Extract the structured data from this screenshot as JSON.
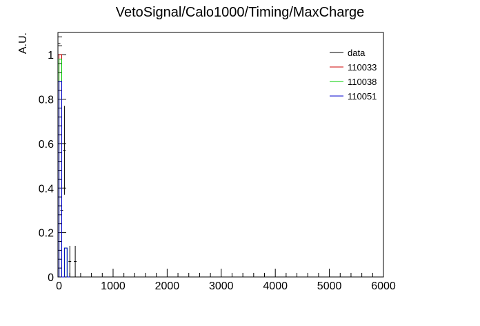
{
  "chart_data": {
    "type": "line",
    "title": "VetoSignal/Calo1000/Timing/MaxCharge",
    "xlabel": "",
    "ylabel": "A.U.",
    "xlim": [
      -20,
      6000
    ],
    "ylim": [
      0,
      1.1
    ],
    "x_ticks": [
      0,
      1000,
      2000,
      3000,
      4000,
      5000,
      6000
    ],
    "y_ticks": [
      0,
      0.2,
      0.4,
      0.6,
      0.8,
      1
    ],
    "x_tick_labels": [
      "0",
      "1000",
      "2000",
      "3000",
      "4000",
      "5000",
      "6000"
    ],
    "y_tick_labels": [
      "0",
      "0.2",
      "0.4",
      "0.6",
      "0.8",
      "1"
    ],
    "bin_width": 50,
    "grid": false,
    "legend_position": "top-right",
    "series": [
      {
        "name": "data",
        "color": "#000000",
        "style": "points-with-errors",
        "points": [
          {
            "x": 0,
            "y": 1.05,
            "err": 0.0
          },
          {
            "x": 50,
            "y": 0.3,
            "err": 0.12
          },
          {
            "x": 100,
            "y": 0.57,
            "err": 0.2
          },
          {
            "x": 200,
            "y": 0.07,
            "err": 0.07
          },
          {
            "x": 300,
            "y": 0.07,
            "err": 0.07
          }
        ]
      },
      {
        "name": "110033",
        "color": "#cc0000",
        "style": "step",
        "edges": [
          0,
          50,
          100
        ],
        "values": [
          1.0,
          0.0
        ]
      },
      {
        "name": "110038",
        "color": "#00cc00",
        "style": "step",
        "edges": [
          0,
          50,
          100,
          150,
          200
        ],
        "values": [
          0.98,
          0.0,
          0.13,
          0.0
        ]
      },
      {
        "name": "110051",
        "color": "#0000cc",
        "style": "step",
        "edges": [
          0,
          50,
          100,
          150,
          200
        ],
        "values": [
          0.88,
          0.0,
          0.13,
          0.0
        ]
      }
    ]
  }
}
